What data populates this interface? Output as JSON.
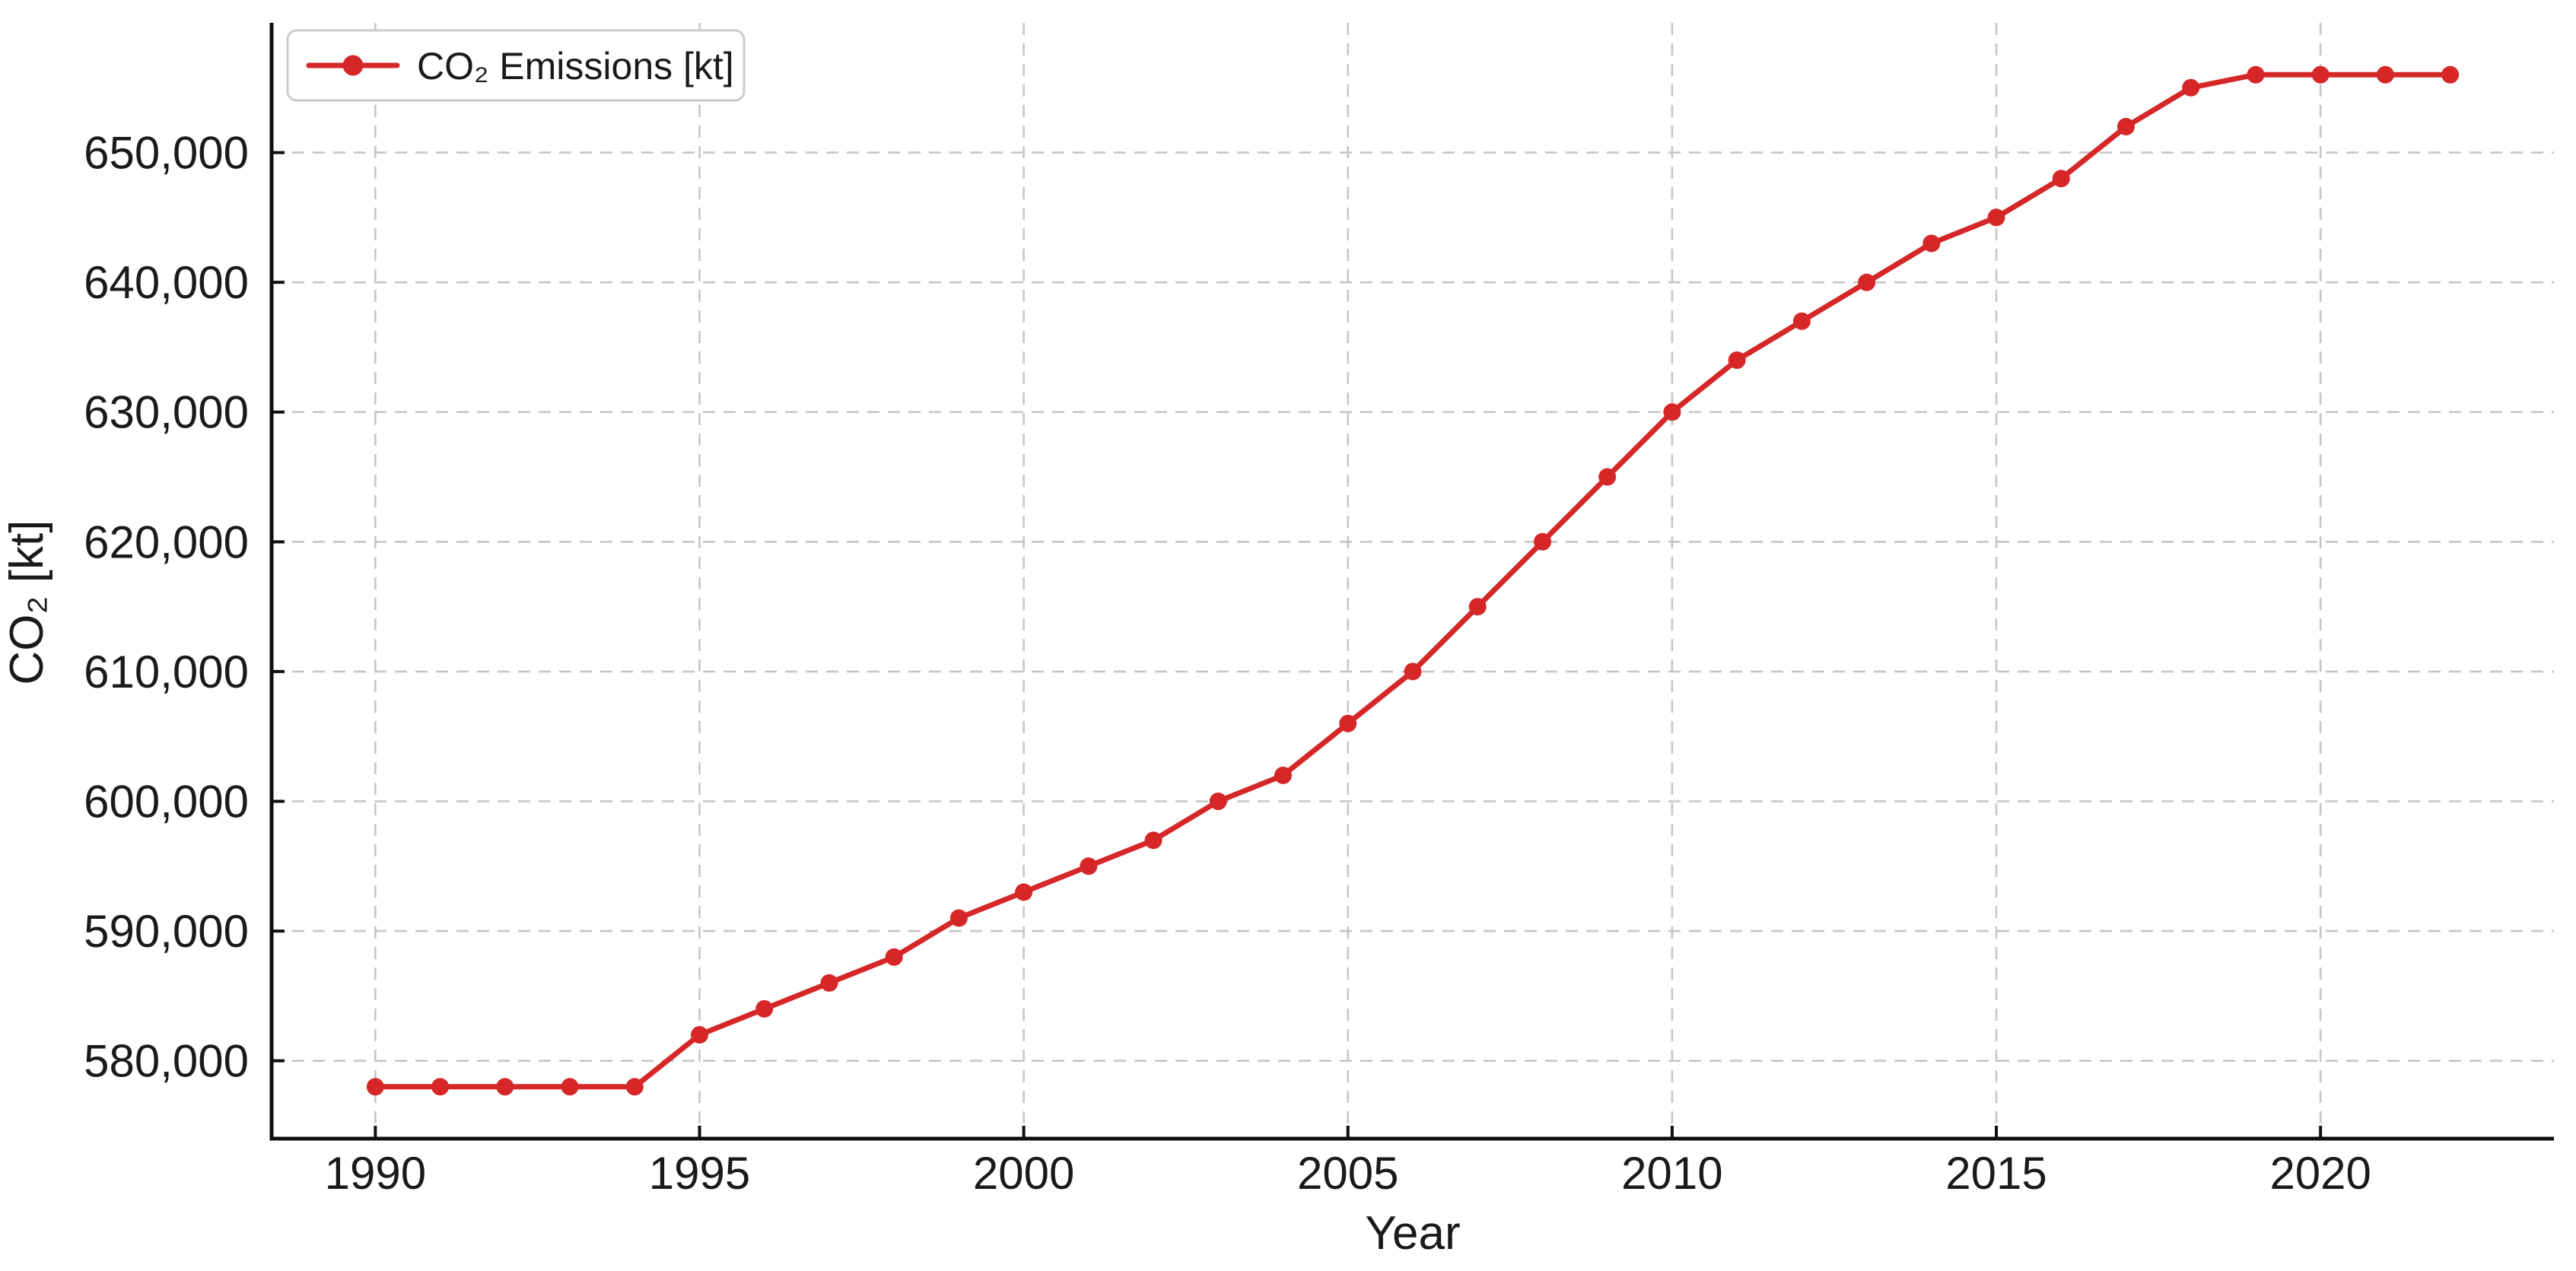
{
  "chart_data": {
    "type": "line",
    "title": "",
    "xlabel": "Year",
    "ylabel": "CO₂ [kt]",
    "legend": {
      "label": "CO₂ Emissions [kt]",
      "position": "upper left"
    },
    "series": [
      {
        "name": "CO₂ Emissions [kt]",
        "marker": "circle",
        "x": [
          1990,
          1991,
          1992,
          1993,
          1994,
          1995,
          1996,
          1997,
          1998,
          1999,
          2000,
          2001,
          2002,
          2003,
          2004,
          2005,
          2006,
          2007,
          2008,
          2009,
          2010,
          2011,
          2012,
          2013,
          2014,
          2015,
          2016,
          2017,
          2018,
          2019,
          2020,
          2021,
          2022
        ],
        "values": [
          578000,
          578000,
          578000,
          578000,
          578000,
          582000,
          584000,
          586000,
          588000,
          591000,
          593000,
          595000,
          597000,
          600000,
          602000,
          606000,
          610000,
          615000,
          620000,
          625000,
          630000,
          634000,
          637000,
          640000,
          643000,
          645000,
          648000,
          652000,
          655000,
          656000,
          656000,
          656000,
          656000
        ]
      }
    ],
    "xlim": [
      1988.4,
      2023.6
    ],
    "ylim": [
      574000,
      660000
    ],
    "x_ticks": [
      1990,
      1995,
      2000,
      2005,
      2010,
      2015,
      2020
    ],
    "y_ticks": [
      580000,
      590000,
      600000,
      610000,
      620000,
      630000,
      640000,
      650000
    ],
    "grid": true,
    "grid_style": "dashed",
    "colors": {
      "line": "#d62728",
      "grid": "#c6c6c6",
      "spine": "#0f0f0f",
      "tick": "#0f0f0f",
      "text": "#1a1a1a",
      "background": "#ffffff",
      "legend_border": "#cccccc",
      "legend_background": "#ffffff"
    }
  }
}
